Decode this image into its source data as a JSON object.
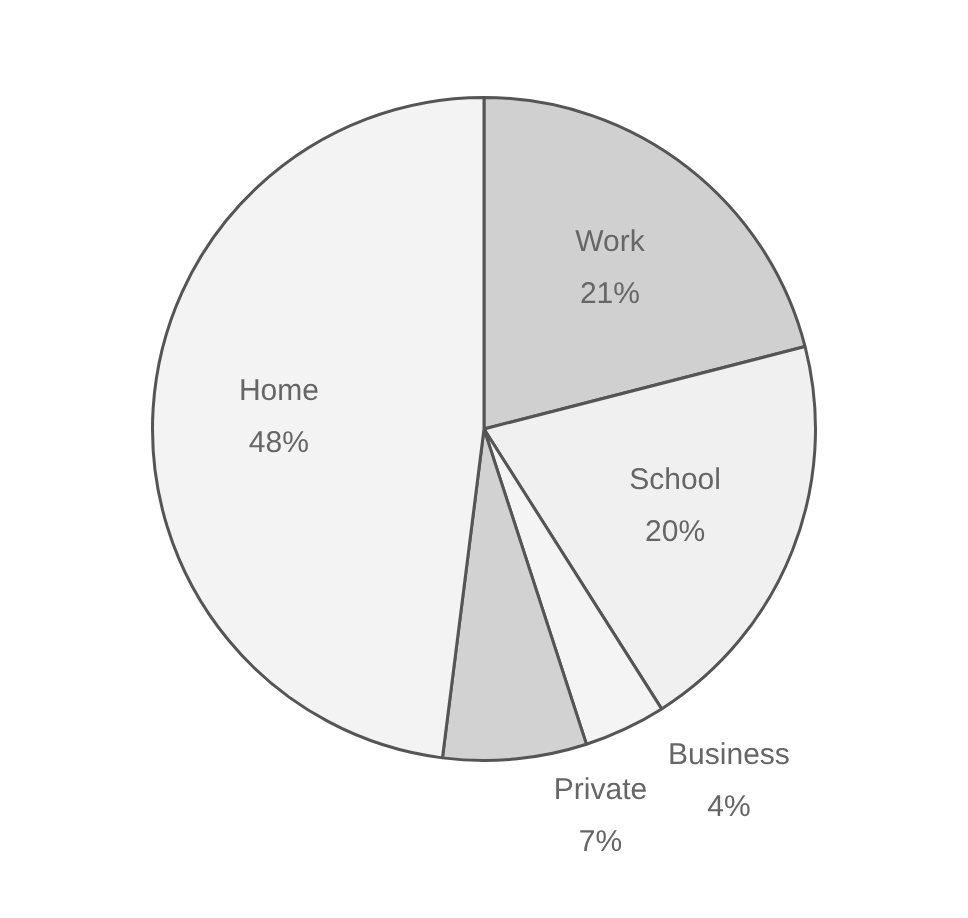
{
  "chart_data": {
    "type": "pie",
    "categories": [
      "Work",
      "School",
      "Business",
      "Private",
      "Home"
    ],
    "values": [
      21,
      20,
      4,
      7,
      48
    ],
    "value_labels": [
      "21%",
      "20%",
      "4%",
      "7%",
      "48%"
    ],
    "colors": [
      "#d0d0d0",
      "#f0f0f0",
      "#f4f4f4",
      "#d2d2d2",
      "#f3f3f3"
    ],
    "legend": false
  }
}
